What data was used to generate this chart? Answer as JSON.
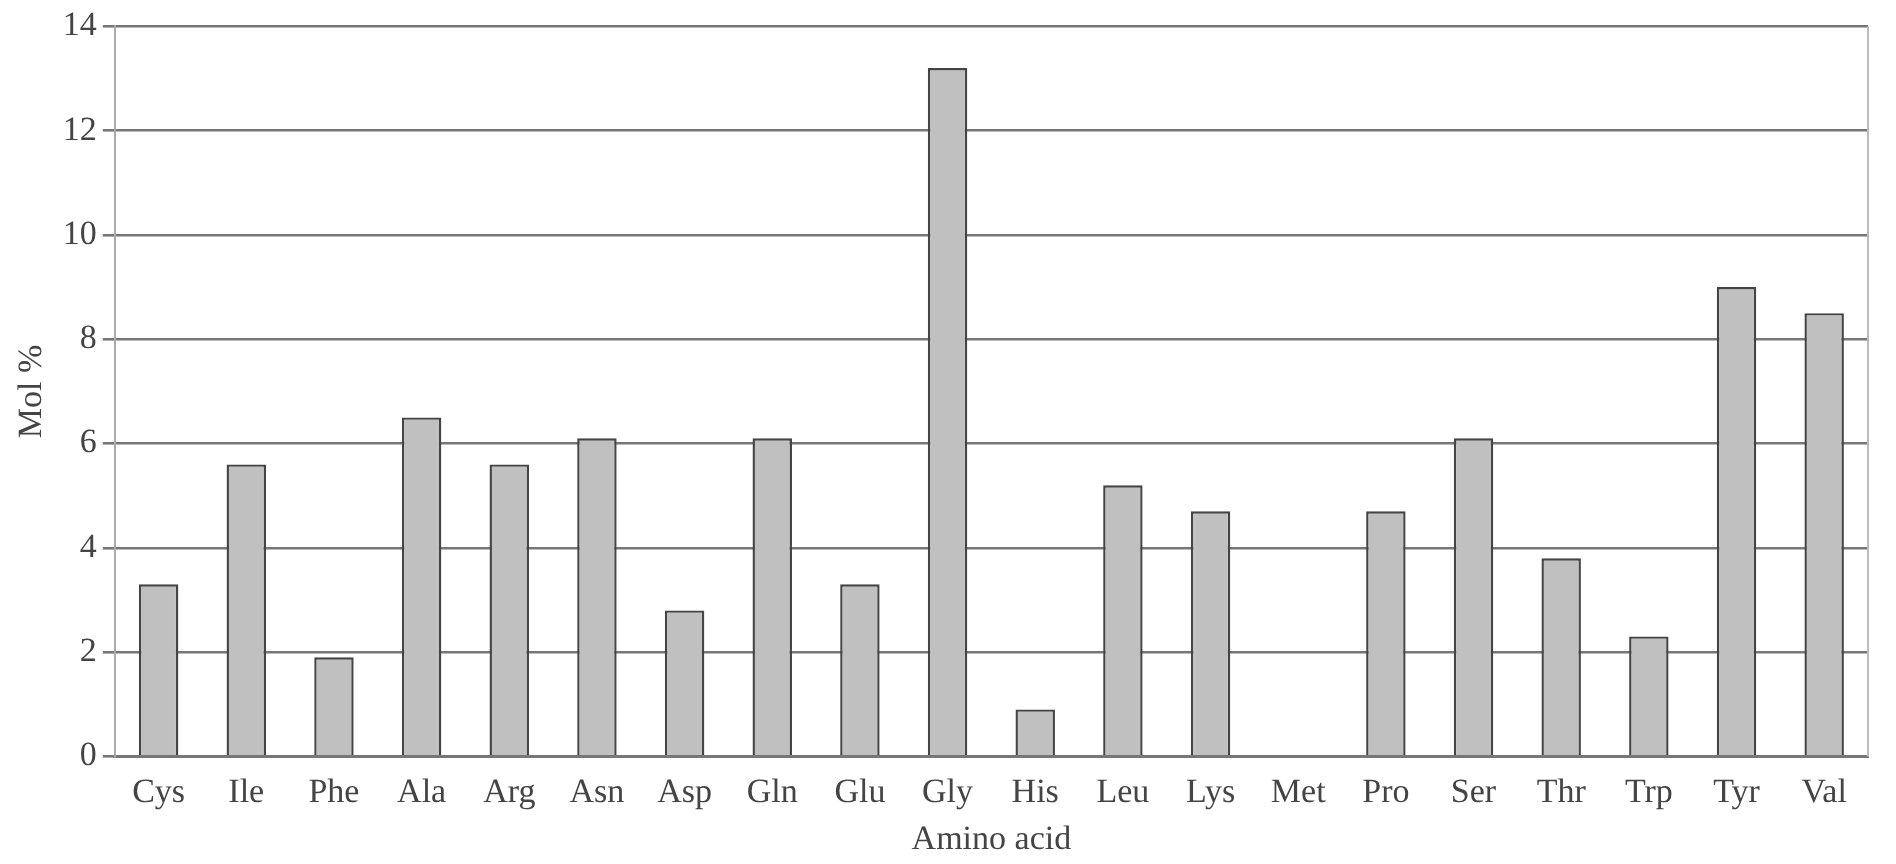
{
  "chart_data": {
    "type": "bar",
    "xlabel": "Amino acid",
    "ylabel": "Mol %",
    "categories": [
      "Cys",
      "Ile",
      "Phe",
      "Ala",
      "Arg",
      "Asn",
      "Asp",
      "Gln",
      "Glu",
      "Gly",
      "His",
      "Leu",
      "Lys",
      "Met",
      "Pro",
      "Ser",
      "Thr",
      "Trp",
      "Tyr",
      "Val"
    ],
    "values": [
      3.3,
      5.6,
      1.9,
      6.5,
      5.6,
      6.1,
      2.8,
      6.1,
      3.3,
      13.2,
      0.9,
      5.2,
      4.7,
      0,
      4.7,
      6.1,
      3.8,
      2.3,
      9.0,
      8.5
    ],
    "color": "#c0c0c0",
    "ylim": [
      0,
      14
    ],
    "yticks": [
      0,
      2,
      4,
      6,
      8,
      10,
      12,
      14
    ],
    "grid": "y",
    "legend": false
  }
}
